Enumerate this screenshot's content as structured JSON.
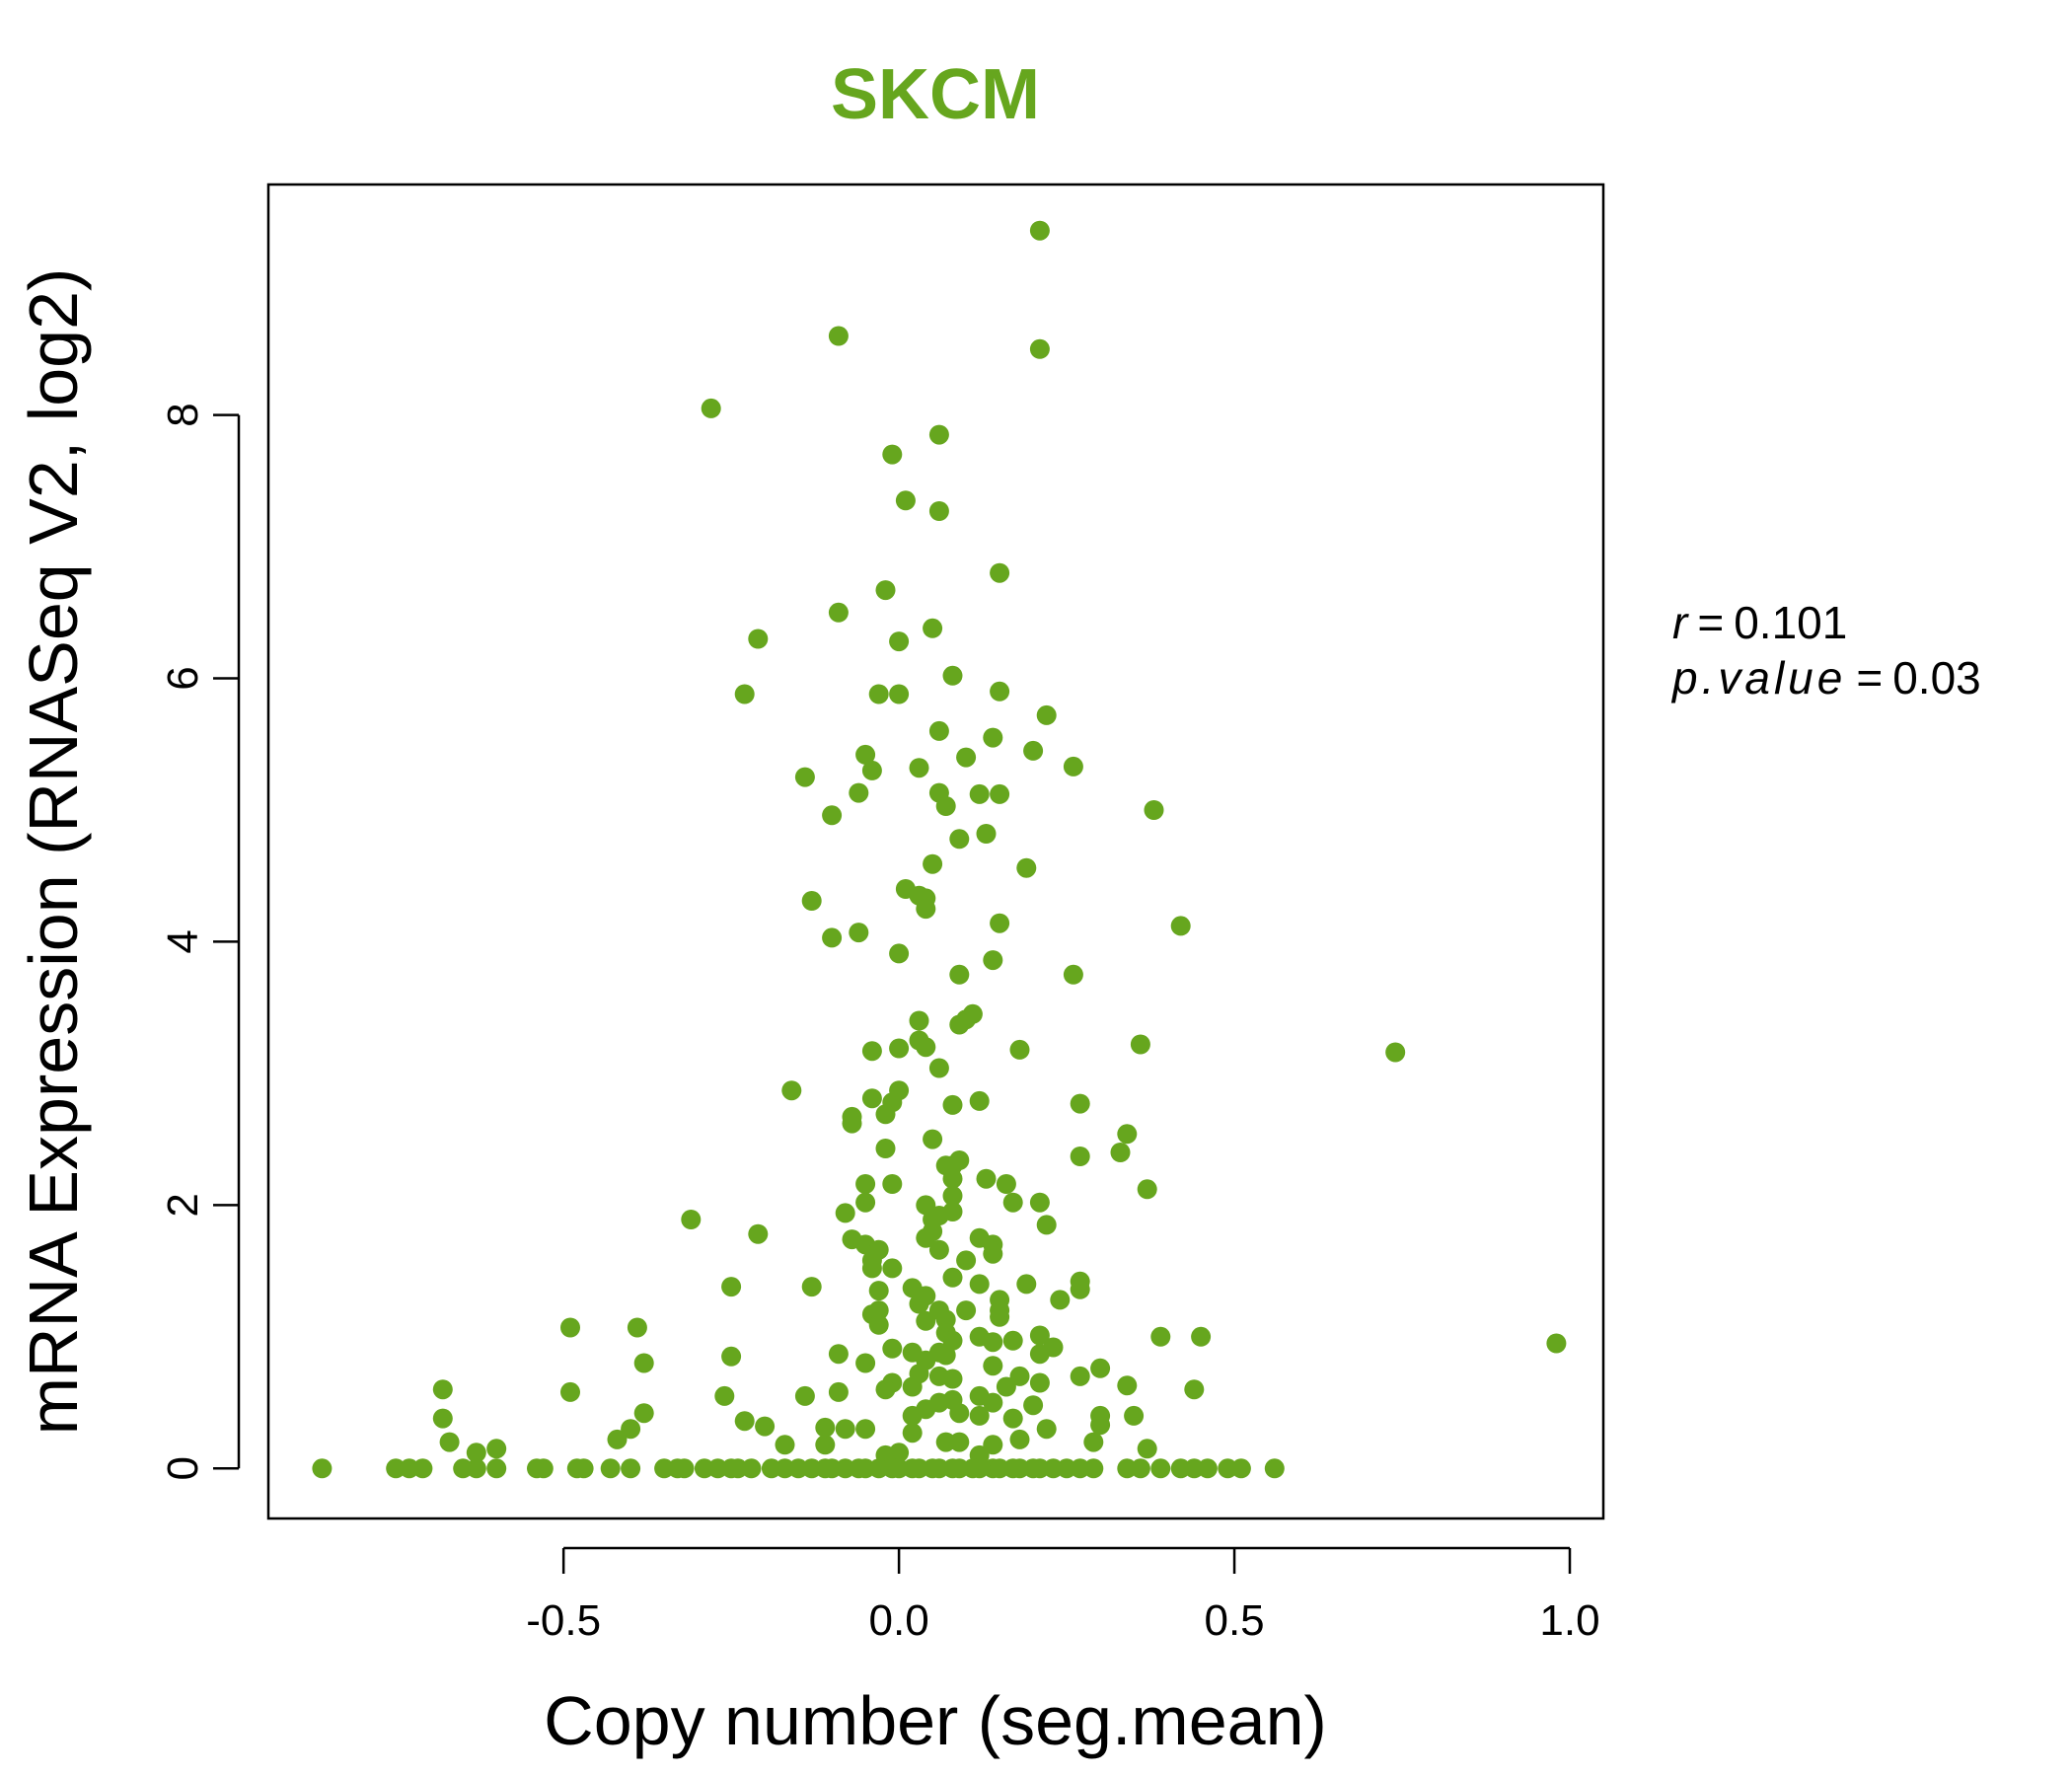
{
  "chart_data": {
    "type": "scatter",
    "title": "SKCM",
    "xlabel": "Copy number (seg.mean)",
    "ylabel": "mRNA Expression (RNASeq V2, log2)",
    "xlim": [
      -0.94,
      1.05
    ],
    "ylim": [
      -0.38,
      9.75
    ],
    "x_ticks": [
      -0.5,
      0.0,
      0.5,
      1.0
    ],
    "x_tick_labels": [
      "-0.5",
      "0.0",
      "0.5",
      "1.0"
    ],
    "y_ticks": [
      0,
      2,
      4,
      6,
      8
    ],
    "y_tick_labels": [
      "0",
      "2",
      "4",
      "6",
      "8"
    ],
    "grid": false,
    "colors": {
      "points": "#66a61e",
      "title": "#66a61e",
      "axes": "#000000"
    },
    "stats": {
      "r_label": "r",
      "r_value": "0.101",
      "p_label": "p.value",
      "p_value": "0.03"
    },
    "points": [
      [
        0.21,
        9.4
      ],
      [
        -0.09,
        8.6
      ],
      [
        0.21,
        8.5
      ],
      [
        -0.28,
        8.05
      ],
      [
        0.06,
        7.85
      ],
      [
        -0.01,
        7.7
      ],
      [
        0.01,
        7.35
      ],
      [
        0.06,
        7.27
      ],
      [
        0.15,
        6.8
      ],
      [
        -0.02,
        6.67
      ],
      [
        -0.09,
        6.5
      ],
      [
        0.05,
        6.38
      ],
      [
        -0.21,
        6.3
      ],
      [
        0.0,
        6.28
      ],
      [
        0.08,
        6.02
      ],
      [
        -0.23,
        5.88
      ],
      [
        -0.03,
        5.88
      ],
      [
        0.0,
        5.88
      ],
      [
        0.15,
        5.9
      ],
      [
        0.22,
        5.72
      ],
      [
        0.06,
        5.6
      ],
      [
        0.14,
        5.55
      ],
      [
        0.2,
        5.45
      ],
      [
        -0.05,
        5.42
      ],
      [
        0.1,
        5.4
      ],
      [
        -0.04,
        5.3
      ],
      [
        0.03,
        5.32
      ],
      [
        0.26,
        5.33
      ],
      [
        -0.14,
        5.25
      ],
      [
        -0.06,
        5.13
      ],
      [
        0.06,
        5.13
      ],
      [
        0.12,
        5.12
      ],
      [
        0.15,
        5.12
      ],
      [
        0.07,
        5.03
      ],
      [
        0.38,
        5.0
      ],
      [
        -0.1,
        4.96
      ],
      [
        0.13,
        4.82
      ],
      [
        0.09,
        4.78
      ],
      [
        0.19,
        4.56
      ],
      [
        0.05,
        4.59
      ],
      [
        0.01,
        4.4
      ],
      [
        0.03,
        4.35
      ],
      [
        0.04,
        4.33
      ],
      [
        -0.13,
        4.31
      ],
      [
        0.04,
        4.25
      ],
      [
        0.15,
        4.14
      ],
      [
        0.42,
        4.12
      ],
      [
        -0.06,
        4.07
      ],
      [
        -0.1,
        4.03
      ],
      [
        0.0,
        3.91
      ],
      [
        0.14,
        3.86
      ],
      [
        0.09,
        3.75
      ],
      [
        0.26,
        3.75
      ],
      [
        0.11,
        3.45
      ],
      [
        0.1,
        3.41
      ],
      [
        0.03,
        3.4
      ],
      [
        0.09,
        3.37
      ],
      [
        0.03,
        3.25
      ],
      [
        0.04,
        3.2
      ],
      [
        -0.04,
        3.17
      ],
      [
        0.0,
        3.19
      ],
      [
        0.18,
        3.18
      ],
      [
        0.36,
        3.22
      ],
      [
        0.74,
        3.16
      ],
      [
        0.06,
        3.04
      ],
      [
        -0.16,
        2.87
      ],
      [
        0.0,
        2.87
      ],
      [
        -0.04,
        2.81
      ],
      [
        -0.01,
        2.78
      ],
      [
        0.08,
        2.76
      ],
      [
        0.12,
        2.79
      ],
      [
        0.27,
        2.77
      ],
      [
        -0.07,
        2.67
      ],
      [
        -0.02,
        2.69
      ],
      [
        -0.07,
        2.62
      ],
      [
        0.34,
        2.54
      ],
      [
        0.05,
        2.5
      ],
      [
        -0.02,
        2.43
      ],
      [
        0.33,
        2.4
      ],
      [
        0.27,
        2.37
      ],
      [
        0.09,
        2.34
      ],
      [
        0.08,
        2.3
      ],
      [
        0.07,
        2.3
      ],
      [
        0.08,
        2.2
      ],
      [
        0.13,
        2.2
      ],
      [
        -0.05,
        2.16
      ],
      [
        -0.01,
        2.16
      ],
      [
        0.16,
        2.16
      ],
      [
        0.37,
        2.12
      ],
      [
        0.08,
        2.07
      ],
      [
        0.21,
        2.02
      ],
      [
        0.17,
        2.02
      ],
      [
        -0.05,
        2.02
      ],
      [
        0.04,
        2.0
      ],
      [
        -0.08,
        1.94
      ],
      [
        0.08,
        1.95
      ],
      [
        0.06,
        1.92
      ],
      [
        0.05,
        1.89
      ],
      [
        -0.31,
        1.89
      ],
      [
        0.22,
        1.85
      ],
      [
        0.05,
        1.8
      ],
      [
        -0.21,
        1.78
      ],
      [
        0.04,
        1.75
      ],
      [
        0.12,
        1.75
      ],
      [
        -0.07,
        1.74
      ],
      [
        -0.05,
        1.7
      ],
      [
        0.14,
        1.7
      ],
      [
        -0.03,
        1.66
      ],
      [
        0.06,
        1.66
      ],
      [
        0.14,
        1.63
      ],
      [
        -0.04,
        1.58
      ],
      [
        0.1,
        1.58
      ],
      [
        -0.04,
        1.52
      ],
      [
        -0.01,
        1.52
      ],
      [
        0.08,
        1.45
      ],
      [
        0.12,
        1.4
      ],
      [
        0.19,
        1.4
      ],
      [
        0.27,
        1.42
      ],
      [
        -0.25,
        1.38
      ],
      [
        -0.13,
        1.38
      ],
      [
        -0.03,
        1.35
      ],
      [
        0.02,
        1.37
      ],
      [
        0.27,
        1.36
      ],
      [
        0.04,
        1.31
      ],
      [
        0.15,
        1.28
      ],
      [
        0.24,
        1.28
      ],
      [
        0.03,
        1.25
      ],
      [
        0.06,
        1.2
      ],
      [
        -0.03,
        1.2
      ],
      [
        -0.04,
        1.17
      ],
      [
        0.1,
        1.2
      ],
      [
        0.15,
        1.2
      ],
      [
        0.15,
        1.15
      ],
      [
        0.07,
        1.13
      ],
      [
        0.04,
        1.12
      ],
      [
        -0.03,
        1.09
      ],
      [
        -0.39,
        1.07
      ],
      [
        -0.49,
        1.07
      ],
      [
        0.07,
        1.03
      ],
      [
        0.12,
        1.0
      ],
      [
        0.21,
        1.01
      ],
      [
        0.39,
        1.0
      ],
      [
        0.45,
        1.0
      ],
      [
        0.08,
        0.97
      ],
      [
        0.14,
        0.96
      ],
      [
        0.17,
        0.97
      ],
      [
        0.98,
        0.95
      ],
      [
        0.23,
        0.92
      ],
      [
        -0.01,
        0.91
      ],
      [
        0.02,
        0.88
      ],
      [
        0.06,
        0.88
      ],
      [
        0.07,
        0.86
      ],
      [
        0.21,
        0.87
      ],
      [
        -0.09,
        0.87
      ],
      [
        -0.05,
        0.8
      ],
      [
        0.04,
        0.82
      ],
      [
        0.14,
        0.78
      ],
      [
        0.3,
        0.76
      ],
      [
        -0.38,
        0.8
      ],
      [
        -0.25,
        0.85
      ],
      [
        0.06,
        0.7
      ],
      [
        0.08,
        0.68
      ],
      [
        0.18,
        0.7
      ],
      [
        0.27,
        0.7
      ],
      [
        0.03,
        0.72
      ],
      [
        -0.01,
        0.65
      ],
      [
        0.02,
        0.62
      ],
      [
        -0.02,
        0.6
      ],
      [
        0.16,
        0.62
      ],
      [
        0.21,
        0.65
      ],
      [
        0.34,
        0.63
      ],
      [
        -0.68,
        0.6
      ],
      [
        -0.49,
        0.58
      ],
      [
        0.44,
        0.6
      ],
      [
        -0.09,
        0.58
      ],
      [
        -0.26,
        0.55
      ],
      [
        -0.14,
        0.55
      ],
      [
        0.12,
        0.55
      ],
      [
        0.08,
        0.52
      ],
      [
        0.06,
        0.5
      ],
      [
        0.14,
        0.5
      ],
      [
        0.2,
        0.48
      ],
      [
        0.04,
        0.45
      ],
      [
        0.09,
        0.42
      ],
      [
        0.12,
        0.4
      ],
      [
        0.3,
        0.4
      ],
      [
        -0.38,
        0.42
      ],
      [
        0.02,
        0.4
      ],
      [
        -0.23,
        0.36
      ],
      [
        -0.68,
        0.38
      ],
      [
        0.17,
        0.38
      ],
      [
        0.35,
        0.4
      ],
      [
        -0.2,
        0.32
      ],
      [
        -0.11,
        0.31
      ],
      [
        -0.05,
        0.3
      ],
      [
        0.02,
        0.27
      ],
      [
        -0.08,
        0.3
      ],
      [
        -0.4,
        0.3
      ],
      [
        0.22,
        0.3
      ],
      [
        0.3,
        0.33
      ],
      [
        -0.42,
        0.22
      ],
      [
        -0.67,
        0.2
      ],
      [
        -0.6,
        0.15
      ],
      [
        -0.63,
        0.12
      ],
      [
        -0.17,
        0.18
      ],
      [
        -0.11,
        0.18
      ],
      [
        0.07,
        0.2
      ],
      [
        0.09,
        0.2
      ],
      [
        0.14,
        0.18
      ],
      [
        0.18,
        0.22
      ],
      [
        0.29,
        0.2
      ],
      [
        0.37,
        0.15
      ],
      [
        0.0,
        0.12
      ],
      [
        -0.02,
        0.1
      ],
      [
        0.12,
        0.1
      ],
      [
        -0.86,
        0.0
      ],
      [
        -0.75,
        0.0
      ],
      [
        -0.73,
        0.0
      ],
      [
        -0.71,
        0.0
      ],
      [
        -0.65,
        0.0
      ],
      [
        -0.63,
        0.0
      ],
      [
        -0.6,
        0.0
      ],
      [
        -0.54,
        0.0
      ],
      [
        -0.53,
        0.0
      ],
      [
        -0.48,
        0.0
      ],
      [
        -0.47,
        0.0
      ],
      [
        -0.43,
        0.0
      ],
      [
        -0.4,
        0.0
      ],
      [
        -0.35,
        0.0
      ],
      [
        -0.33,
        0.0
      ],
      [
        -0.32,
        0.0
      ],
      [
        -0.29,
        0.0
      ],
      [
        -0.27,
        0.0
      ],
      [
        -0.25,
        0.0
      ],
      [
        -0.24,
        0.0
      ],
      [
        -0.22,
        0.0
      ],
      [
        -0.19,
        0.0
      ],
      [
        -0.17,
        0.0
      ],
      [
        -0.15,
        0.0
      ],
      [
        -0.13,
        0.0
      ],
      [
        -0.11,
        0.0
      ],
      [
        -0.1,
        0.0
      ],
      [
        -0.08,
        0.0
      ],
      [
        -0.06,
        0.0
      ],
      [
        -0.05,
        0.0
      ],
      [
        -0.03,
        0.0
      ],
      [
        -0.01,
        0.0
      ],
      [
        0.0,
        0.0
      ],
      [
        0.02,
        0.0
      ],
      [
        0.03,
        0.0
      ],
      [
        0.05,
        0.0
      ],
      [
        0.06,
        0.0
      ],
      [
        0.08,
        0.0
      ],
      [
        0.09,
        0.0
      ],
      [
        0.11,
        0.0
      ],
      [
        0.12,
        0.0
      ],
      [
        0.14,
        0.0
      ],
      [
        0.15,
        0.0
      ],
      [
        0.17,
        0.0
      ],
      [
        0.18,
        0.0
      ],
      [
        0.2,
        0.0
      ],
      [
        0.21,
        0.0
      ],
      [
        0.23,
        0.0
      ],
      [
        0.25,
        0.0
      ],
      [
        0.27,
        0.0
      ],
      [
        0.29,
        0.0
      ],
      [
        0.34,
        0.0
      ],
      [
        0.36,
        0.0
      ],
      [
        0.39,
        0.0
      ],
      [
        0.42,
        0.0
      ],
      [
        0.44,
        0.0
      ],
      [
        0.46,
        0.0
      ],
      [
        0.49,
        0.0
      ],
      [
        0.51,
        0.0
      ],
      [
        0.56,
        0.0
      ]
    ]
  }
}
